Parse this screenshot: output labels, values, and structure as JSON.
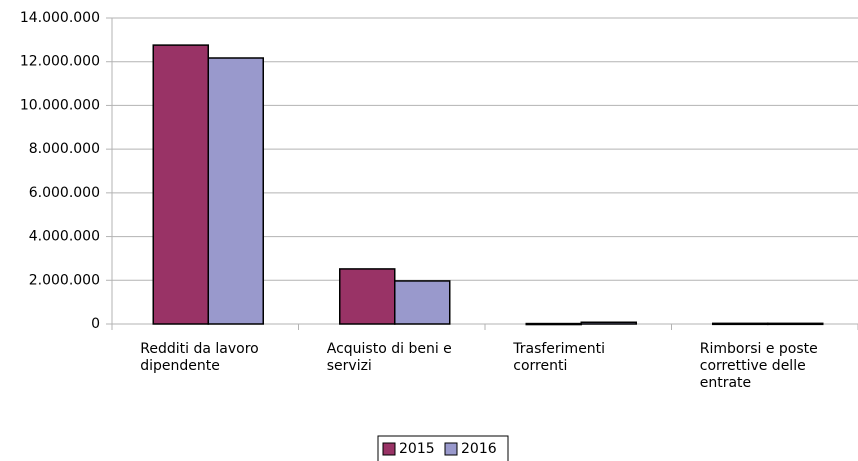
{
  "chart_data": {
    "type": "bar",
    "categories": [
      "Redditi da lavoro dipendente",
      "Acquisto di beni e servizi",
      "Trasferimenti correnti",
      "Rimborsi e poste correttive delle entrate"
    ],
    "series": [
      {
        "name": "2015",
        "color": "#993366",
        "values": [
          12760000,
          2520000,
          20000,
          30000
        ]
      },
      {
        "name": "2016",
        "color": "#9999cc",
        "values": [
          12170000,
          1970000,
          80000,
          30000
        ]
      }
    ],
    "ylim": [
      0,
      14000000
    ],
    "yticks": [
      0,
      {
        "value": 2000000,
        "label": "2.000.000"
      },
      {
        "value": 4000000,
        "label": "4.000.000"
      },
      {
        "value": 6000000,
        "label": "6.000.000"
      },
      {
        "value": 8000000,
        "label": "8.000.000"
      },
      {
        "value": 10000000,
        "label": "10.000.000"
      },
      {
        "value": 12000000,
        "label": "12.000.000"
      },
      {
        "value": 14000000,
        "label": "14.000.000"
      }
    ],
    "grid": true,
    "legend": "bottom"
  }
}
